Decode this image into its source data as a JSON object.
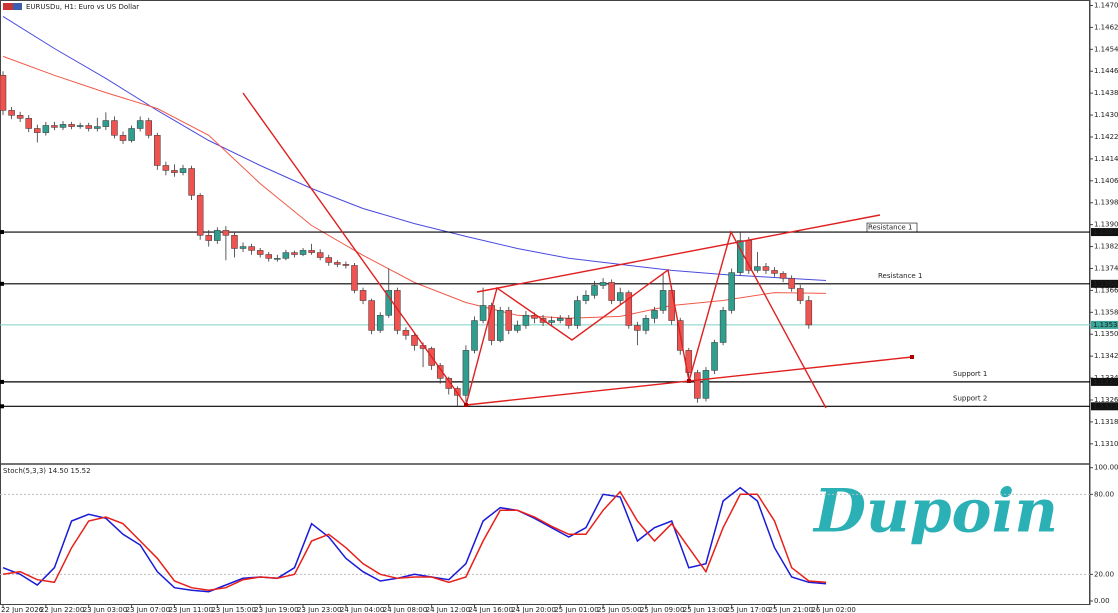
{
  "chart_data": [
    {
      "type": "candlestick",
      "title": "EURUSDu, H1: Euro vs US Dollar",
      "candles": [
        [
          1.14445,
          1.1446,
          1.143,
          1.14317
        ],
        [
          1.14317,
          1.1433,
          1.14285,
          1.14299
        ],
        [
          1.14299,
          1.14312,
          1.14275,
          1.14288
        ],
        [
          1.14288,
          1.143,
          1.14238,
          1.14251
        ],
        [
          1.14251,
          1.14265,
          1.142,
          1.14236
        ],
        [
          1.14236,
          1.14275,
          1.14225,
          1.14262
        ],
        [
          1.14262,
          1.14275,
          1.14245,
          1.14255
        ],
        [
          1.14255,
          1.14278,
          1.14245,
          1.14266
        ],
        [
          1.14266,
          1.14275,
          1.14248,
          1.14258
        ],
        [
          1.14258,
          1.14272,
          1.1425,
          1.14262
        ],
        [
          1.14262,
          1.14272,
          1.1424,
          1.14251
        ],
        [
          1.14251,
          1.1429,
          1.1424,
          1.14258
        ],
        [
          1.14258,
          1.1431,
          1.14245,
          1.1428
        ],
        [
          1.1428,
          1.14295,
          1.14215,
          1.14226
        ],
        [
          1.14226,
          1.1424,
          1.14195,
          1.14207
        ],
        [
          1.14207,
          1.14262,
          1.142,
          1.14251
        ],
        [
          1.14251,
          1.14295,
          1.1424,
          1.1428
        ],
        [
          1.1428,
          1.1429,
          1.14215,
          1.14226
        ],
        [
          1.14226,
          1.14235,
          1.141,
          1.14116
        ],
        [
          1.14116,
          1.1413,
          1.1408,
          1.14098
        ],
        [
          1.14098,
          1.1412,
          1.14075,
          1.1409
        ],
        [
          1.1409,
          1.14118,
          1.1408,
          1.14105
        ],
        [
          1.14105,
          1.14115,
          1.1399,
          1.14007
        ],
        [
          1.14007,
          1.14015,
          1.13845,
          1.13861
        ],
        [
          1.13861,
          1.1388,
          1.1382,
          1.13842
        ],
        [
          1.13842,
          1.1389,
          1.1383,
          1.13879
        ],
        [
          1.13879,
          1.13895,
          1.1377,
          1.13861
        ],
        [
          1.13861,
          1.1387,
          1.1378,
          1.13813
        ],
        [
          1.13813,
          1.13835,
          1.138,
          1.1382
        ],
        [
          1.1382,
          1.1383,
          1.1379,
          1.13806
        ],
        [
          1.13806,
          1.13815,
          1.1378,
          1.13791
        ],
        [
          1.13791,
          1.138,
          1.13765,
          1.13777
        ],
        [
          1.13777,
          1.1379,
          1.13765,
          1.13777
        ],
        [
          1.13777,
          1.13808,
          1.1377,
          1.13798
        ],
        [
          1.13798,
          1.13805,
          1.1378,
          1.13791
        ],
        [
          1.13791,
          1.13815,
          1.13785,
          1.13806
        ],
        [
          1.13806,
          1.1383,
          1.1379,
          1.13798
        ],
        [
          1.13798,
          1.1381,
          1.1377,
          1.1378
        ],
        [
          1.1378,
          1.1379,
          1.1375,
          1.13762
        ],
        [
          1.13762,
          1.1377,
          1.13745,
          1.13755
        ],
        [
          1.13755,
          1.13765,
          1.1374,
          1.13751
        ],
        [
          1.13751,
          1.1376,
          1.1365,
          1.1366
        ],
        [
          1.1366,
          1.1367,
          1.1361,
          1.13623
        ],
        [
          1.13623,
          1.1363,
          1.135,
          1.13514
        ],
        [
          1.13514,
          1.1358,
          1.13505,
          1.13569
        ],
        [
          1.13569,
          1.1374,
          1.1356,
          1.1366
        ],
        [
          1.1366,
          1.1367,
          1.135,
          1.13514
        ],
        [
          1.13514,
          1.13525,
          1.1348,
          1.13496
        ],
        [
          1.13496,
          1.13505,
          1.1344,
          1.13459
        ],
        [
          1.13459,
          1.1347,
          1.1338,
          1.13448
        ],
        [
          1.13448,
          1.13455,
          1.1337,
          1.13386
        ],
        [
          1.13386,
          1.13395,
          1.1332,
          1.13339
        ],
        [
          1.13339,
          1.13345,
          1.1328,
          1.13302
        ],
        [
          1.13302,
          1.1331,
          1.13237,
          1.13277
        ],
        [
          1.13277,
          1.1346,
          1.1325,
          1.13441
        ],
        [
          1.13441,
          1.13565,
          1.1343,
          1.1355
        ],
        [
          1.1355,
          1.1367,
          1.1354,
          1.13605
        ],
        [
          1.13605,
          1.13615,
          1.1346,
          1.13477
        ],
        [
          1.13477,
          1.136,
          1.1347,
          1.13587
        ],
        [
          1.13587,
          1.136,
          1.135,
          1.13514
        ],
        [
          1.13514,
          1.1355,
          1.13505,
          1.13532
        ],
        [
          1.13532,
          1.13585,
          1.1352,
          1.13569
        ],
        [
          1.13569,
          1.1358,
          1.1354,
          1.13558
        ],
        [
          1.13558,
          1.1357,
          1.1353,
          1.13543
        ],
        [
          1.13543,
          1.13565,
          1.1353,
          1.1355
        ],
        [
          1.1355,
          1.1357,
          1.1354,
          1.13558
        ],
        [
          1.13558,
          1.1357,
          1.1352,
          1.13532
        ],
        [
          1.13532,
          1.1364,
          1.1352,
          1.13623
        ],
        [
          1.13623,
          1.1366,
          1.1361,
          1.13642
        ],
        [
          1.13642,
          1.13695,
          1.1363,
          1.13678
        ],
        [
          1.13678,
          1.13705,
          1.13665,
          1.13689
        ],
        [
          1.13689,
          1.137,
          1.1361,
          1.13623
        ],
        [
          1.13623,
          1.1367,
          1.1361,
          1.13652
        ],
        [
          1.13652,
          1.1366,
          1.1352,
          1.13532
        ],
        [
          1.13532,
          1.13545,
          1.1346,
          1.13514
        ],
        [
          1.13514,
          1.1357,
          1.135,
          1.13558
        ],
        [
          1.13558,
          1.136,
          1.1354,
          1.13587
        ],
        [
          1.13587,
          1.1372,
          1.13575,
          1.1366
        ],
        [
          1.1366,
          1.13675,
          1.13535,
          1.1355
        ],
        [
          1.1355,
          1.1356,
          1.13425,
          1.13441
        ],
        [
          1.13441,
          1.1345,
          1.1334,
          1.1336
        ],
        [
          1.1336,
          1.1337,
          1.1325,
          1.13266
        ],
        [
          1.13266,
          1.1338,
          1.13255,
          1.13368
        ],
        [
          1.13368,
          1.1348,
          1.13355,
          1.1347
        ],
        [
          1.1347,
          1.136,
          1.1346,
          1.13587
        ],
        [
          1.13587,
          1.1374,
          1.13575,
          1.13725
        ],
        [
          1.13725,
          1.13873,
          1.13715,
          1.13842
        ],
        [
          1.13842,
          1.13855,
          1.1372,
          1.13733
        ],
        [
          1.13733,
          1.138,
          1.13725,
          1.13747
        ],
        [
          1.13747,
          1.1376,
          1.1372,
          1.13733
        ],
        [
          1.13733,
          1.13745,
          1.1371,
          1.13722
        ],
        [
          1.13722,
          1.1373,
          1.1369,
          1.13704
        ],
        [
          1.13704,
          1.13715,
          1.13655,
          1.13667
        ],
        [
          1.13667,
          1.1368,
          1.1361,
          1.13623
        ],
        [
          1.13623,
          1.1364,
          1.1352,
          1.13534
        ]
      ],
      "colors": {
        "up": "#2f9e8f",
        "down": "#ef5350"
      },
      "series": [
        {
          "color": "#4a4ae0",
          "x": [
            0,
            6,
            12,
            18,
            24,
            30,
            36,
            42,
            48,
            54,
            60,
            66,
            72,
            78,
            84,
            90,
            96
          ],
          "values": [
            1.1466,
            1.14543,
            1.14434,
            1.14317,
            1.14207,
            1.14116,
            1.14032,
            1.13959,
            1.13904,
            1.13857,
            1.13813,
            1.13777,
            1.13755,
            1.13733,
            1.13718,
            1.13707,
            1.13696
          ]
        },
        {
          "color": "#f05a4a",
          "x": [
            0,
            6,
            12,
            18,
            24,
            30,
            36,
            42,
            48,
            54,
            60,
            66,
            72,
            78,
            84,
            90,
            96
          ],
          "values": [
            1.14514,
            1.14445,
            1.14382,
            1.14324,
            1.14226,
            1.1405,
            1.13897,
            1.13788,
            1.13689,
            1.13616,
            1.13569,
            1.13558,
            1.13565,
            1.13605,
            1.13623,
            1.13652,
            1.13649
          ]
        }
      ],
      "levels": [
        {
          "value": 1.13873,
          "name": "Resistance 1"
        },
        {
          "value": 1.13684,
          "name": "Resistance 1"
        },
        {
          "value": 1.13326,
          "name": "Support 1"
        },
        {
          "value": 1.13237,
          "name": "Support 2"
        }
      ],
      "current_price": 1.13534,
      "xlim": [
        -0.35,
        126.8
      ],
      "xticks": [
        {
          "value": 0,
          "label": "22 Jun 2026"
        },
        {
          "value": 5,
          "label": "22 Jun 22:00"
        },
        {
          "value": 10,
          "label": "23 Jun 03:00"
        },
        {
          "value": 15,
          "label": "23 Jun 07:00"
        },
        {
          "value": 20,
          "label": "23 Jun 11:00"
        },
        {
          "value": 25,
          "label": "23 Jun 15:00"
        },
        {
          "value": 30,
          "label": "23 Jun 19:00"
        },
        {
          "value": 35,
          "label": "23 Jun 23:00"
        },
        {
          "value": 40,
          "label": "24 Jun 04:00"
        },
        {
          "value": 45,
          "label": "24 Jun 08:00"
        },
        {
          "value": 50,
          "label": "24 Jun 12:00"
        },
        {
          "value": 55,
          "label": "24 Jun 16:00"
        },
        {
          "value": 60,
          "label": "24 Jun 20:00"
        },
        {
          "value": 65,
          "label": "25 Jun 01:00"
        },
        {
          "value": 70,
          "label": "25 Jun 05:00"
        },
        {
          "value": 75,
          "label": "25 Jun 09:00"
        },
        {
          "value": 80,
          "label": "25 Jun 13:00"
        },
        {
          "value": 85,
          "label": "25 Jun 17:00"
        },
        {
          "value": 90,
          "label": "25 Jun 21:00"
        },
        {
          "value": 95,
          "label": "26 Jun 02:00"
        }
      ],
      "ylim": [
        1.1303,
        1.1472
      ],
      "yticks": [
        {
          "value": 1.147,
          "label": "1.14700"
        },
        {
          "value": 1.1462,
          "label": "1.14620"
        },
        {
          "value": 1.1454,
          "label": "1.14540"
        },
        {
          "value": 1.1446,
          "label": "1.14460"
        },
        {
          "value": 1.1438,
          "label": "1.14380"
        },
        {
          "value": 1.143,
          "label": "1.14300"
        },
        {
          "value": 1.1422,
          "label": "1.14220"
        },
        {
          "value": 1.1414,
          "label": "1.14140"
        },
        {
          "value": 1.1406,
          "label": "1.14060"
        },
        {
          "value": 1.1398,
          "label": "1.13980"
        },
        {
          "value": 1.139,
          "label": "1.13900"
        },
        {
          "value": 1.1382,
          "label": "1.13820"
        },
        {
          "value": 1.1374,
          "label": "1.13740"
        },
        {
          "value": 1.1366,
          "label": "1.13660"
        },
        {
          "value": 1.1358,
          "label": "1.13580"
        },
        {
          "value": 1.135,
          "label": "1.13500"
        },
        {
          "value": 1.1342,
          "label": "1.13420"
        },
        {
          "value": 1.1334,
          "label": "1.13340"
        },
        {
          "value": 1.1326,
          "label": "1.13260"
        },
        {
          "value": 1.1318,
          "label": "1.13180"
        },
        {
          "value": 1.131,
          "label": "1.13100"
        }
      ]
    },
    {
      "type": "line",
      "title": "Stoch(5,3,3) 14.50 15.52",
      "x": [
        0,
        2,
        4,
        6,
        8,
        10,
        12,
        14,
        16,
        18,
        20,
        22,
        24,
        26,
        28,
        30,
        32,
        34,
        36,
        38,
        40,
        42,
        44,
        46,
        48,
        50,
        52,
        54,
        56,
        58,
        60,
        62,
        64,
        66,
        68,
        70,
        72,
        74,
        76,
        78,
        80,
        82,
        84,
        86,
        88,
        90,
        92,
        94,
        96
      ],
      "series": [
        {
          "color": "#1a1ad8",
          "values": [
            25,
            20,
            12,
            25,
            60,
            65,
            62,
            50,
            42,
            22,
            10,
            8,
            7,
            12,
            17,
            18,
            17,
            25,
            58,
            48,
            32,
            22,
            15,
            17,
            20,
            18,
            16,
            28,
            60,
            70,
            68,
            62,
            55,
            48,
            55,
            80,
            78,
            45,
            55,
            60,
            25,
            28,
            75,
            85,
            75,
            40,
            18,
            14,
            13
          ]
        },
        {
          "color": "#e8201a",
          "values": [
            20,
            22,
            16,
            14,
            40,
            60,
            63,
            58,
            45,
            32,
            15,
            10,
            8,
            10,
            16,
            18,
            17,
            20,
            45,
            50,
            40,
            28,
            20,
            17,
            18,
            18,
            14,
            18,
            45,
            68,
            68,
            63,
            56,
            50,
            50,
            68,
            82,
            60,
            45,
            58,
            40,
            22,
            55,
            80,
            80,
            60,
            25,
            15,
            14
          ]
        }
      ],
      "xlim": [
        -0.35,
        126.8
      ],
      "ylim": [
        -3,
        102
      ],
      "yticks": [
        {
          "value": 100,
          "label": "100.00"
        },
        {
          "value": 80,
          "label": "80.00"
        },
        {
          "value": 20,
          "label": "20.00"
        },
        {
          "value": 0,
          "label": "0.00"
        }
      ],
      "grid_at": [
        80,
        20
      ]
    }
  ],
  "logo": "Dupoin"
}
